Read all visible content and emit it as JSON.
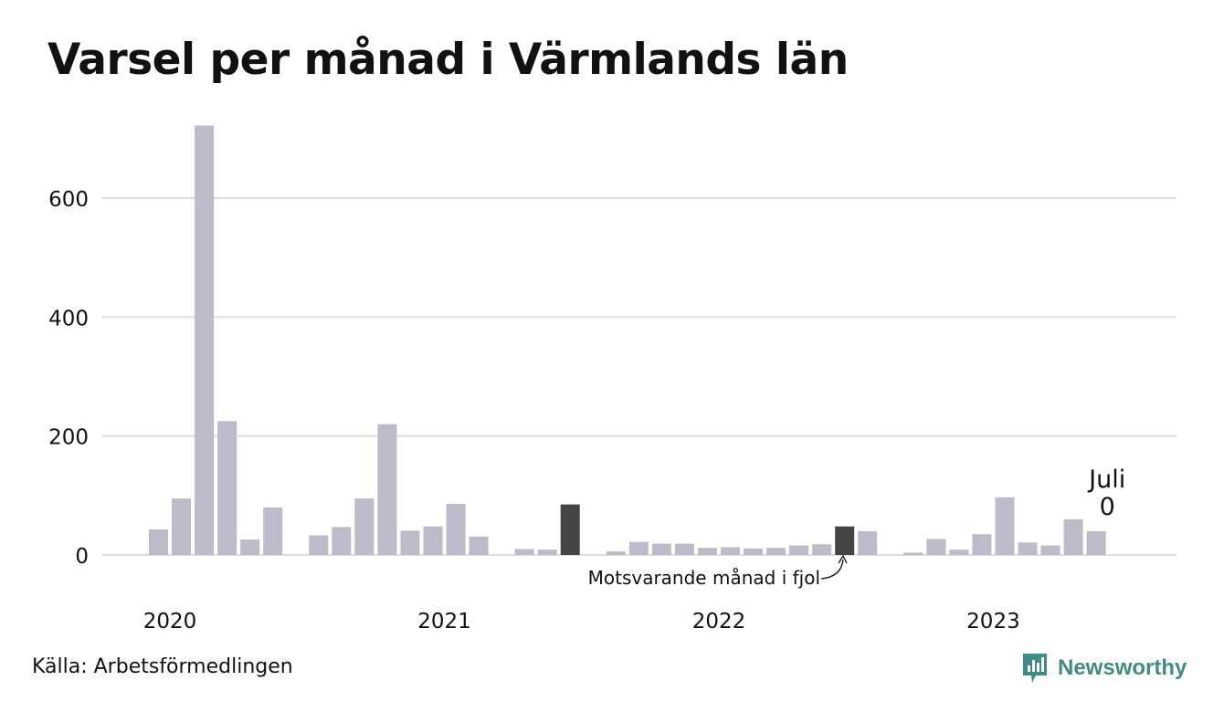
{
  "title": "Varsel per månad i Värmlands län",
  "source": "Källa: Arbetsförmedlingen",
  "brand": {
    "name": "Newsworthy",
    "color": "#3e8d84",
    "icon": "newsworthy-logo-icon"
  },
  "colors": {
    "bar": "#bdbbc9",
    "highlight": "#444444",
    "grid": "#dddddd"
  },
  "chart_data": {
    "type": "bar",
    "title": "Varsel per månad i Värmlands län",
    "xlabel": "",
    "ylabel": "",
    "ylim": [
      0,
      730
    ],
    "yticks": [
      0,
      200,
      400,
      600
    ],
    "grid": true,
    "xtick_labels": [
      "2020",
      "2021",
      "2022",
      "2023"
    ],
    "series": [
      {
        "values": [
          43,
          95,
          722,
          225,
          26,
          80,
          0,
          33,
          47,
          95,
          220,
          41,
          48,
          86,
          31,
          0,
          10,
          9,
          85,
          0,
          6,
          22,
          19,
          19,
          12,
          13,
          11,
          12,
          16,
          18,
          48,
          40,
          0,
          4,
          27,
          9,
          35,
          97,
          21,
          16,
          60,
          40,
          0
        ]
      }
    ],
    "highlight_indices": [
      18,
      30
    ],
    "annotations": [
      {
        "text": "Motsvarande månad i fjol",
        "target_index": 30
      },
      {
        "text": "Juli",
        "target_index": 42
      },
      {
        "text": "0",
        "target_index": 42
      }
    ]
  }
}
